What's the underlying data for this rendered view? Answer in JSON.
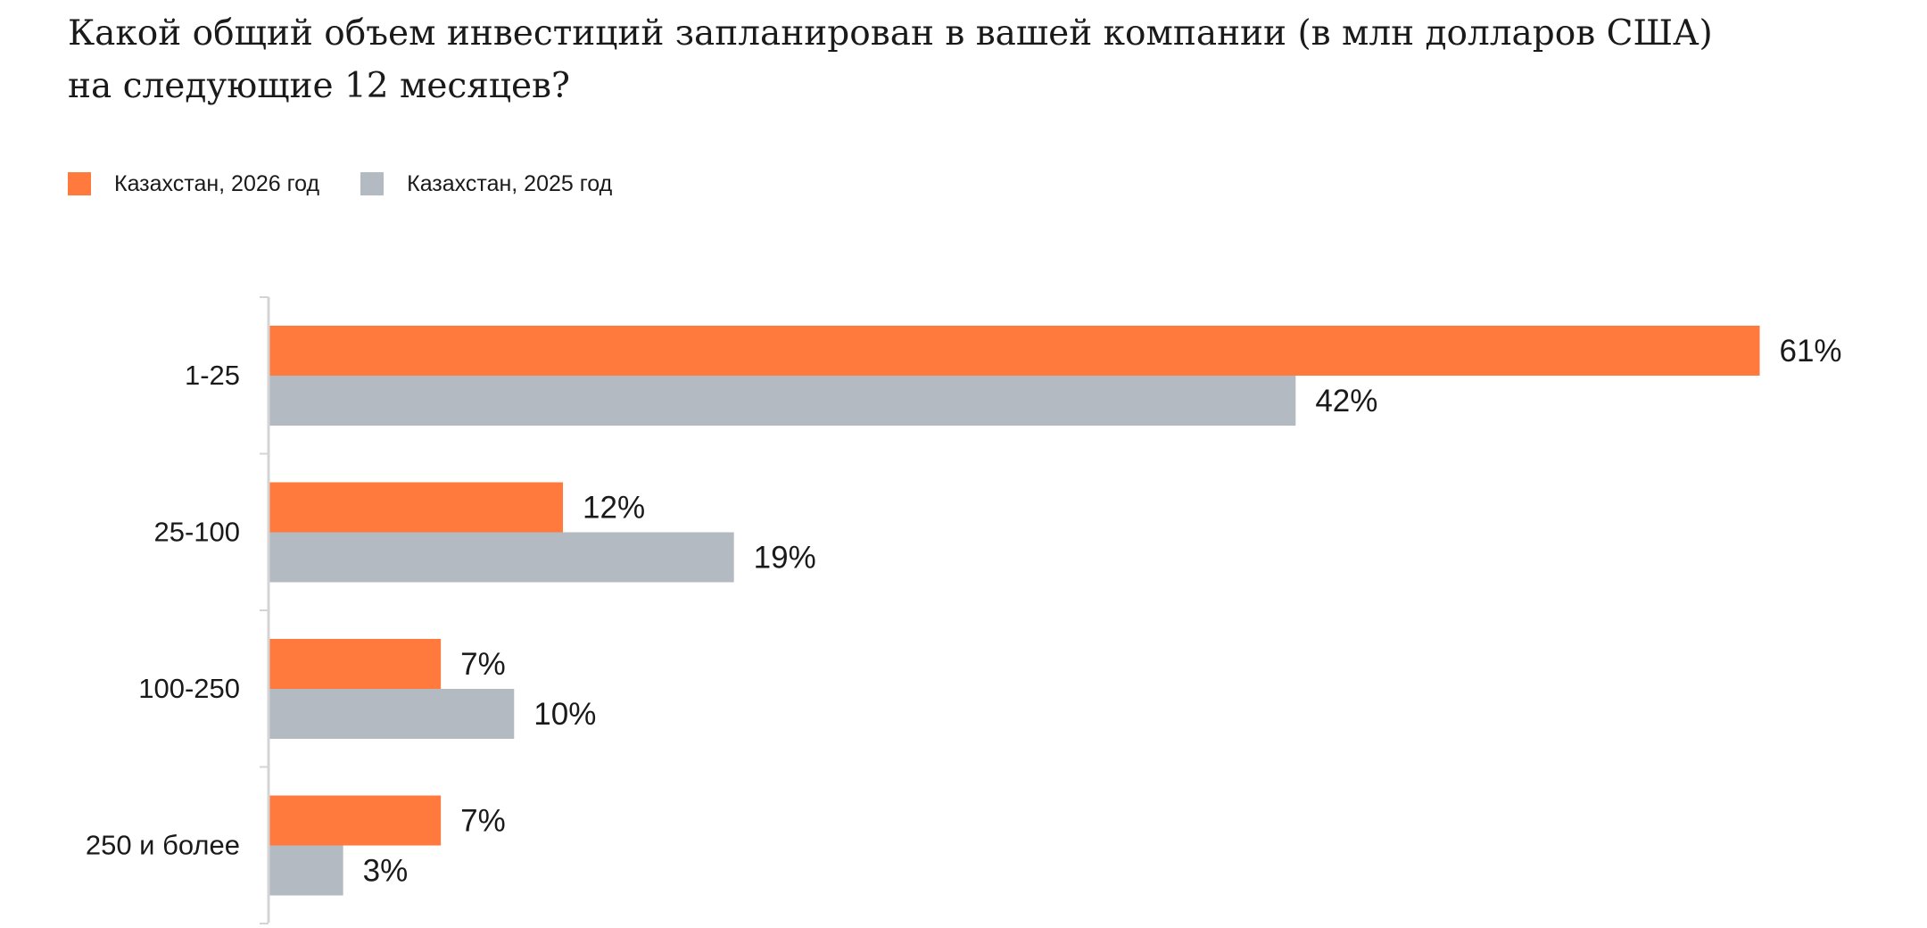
{
  "title": {
    "line1": "Какой общий объем инвестиций запланирован в вашей компании (в млн долларов США)",
    "line2": "на следующие 12 месяцев?"
  },
  "colors": {
    "series_2026": "#FF7A3C",
    "series_2025": "#B4BAC2",
    "axis": "#D4D4D4",
    "text": "#1a1a1a"
  },
  "legend": {
    "items": [
      {
        "label": "Казахстан, 2026 год"
      },
      {
        "label": "Казахстан, 2025 год"
      }
    ],
    "position": "top-left"
  },
  "chart_data": {
    "type": "bar",
    "orientation": "horizontal",
    "title": "Какой общий объем инвестиций запланирован в вашей компании (в млн долларов США) на следующие 12 месяцев?",
    "categories": [
      "1-25",
      "25-100",
      "100-250",
      "250 и более"
    ],
    "series": [
      {
        "name": "Казахстан, 2026 год",
        "values": [
          61,
          12,
          7,
          7
        ],
        "labels": [
          "61%",
          "12%",
          "7%",
          "7%"
        ]
      },
      {
        "name": "Казахстан, 2025 год",
        "values": [
          42,
          19,
          10,
          3
        ],
        "labels": [
          "42%",
          "19%",
          "10%",
          "3%"
        ]
      }
    ],
    "unit": "%",
    "xlim": [
      0,
      61
    ],
    "grid": false,
    "legend_placement": "top-left"
  }
}
